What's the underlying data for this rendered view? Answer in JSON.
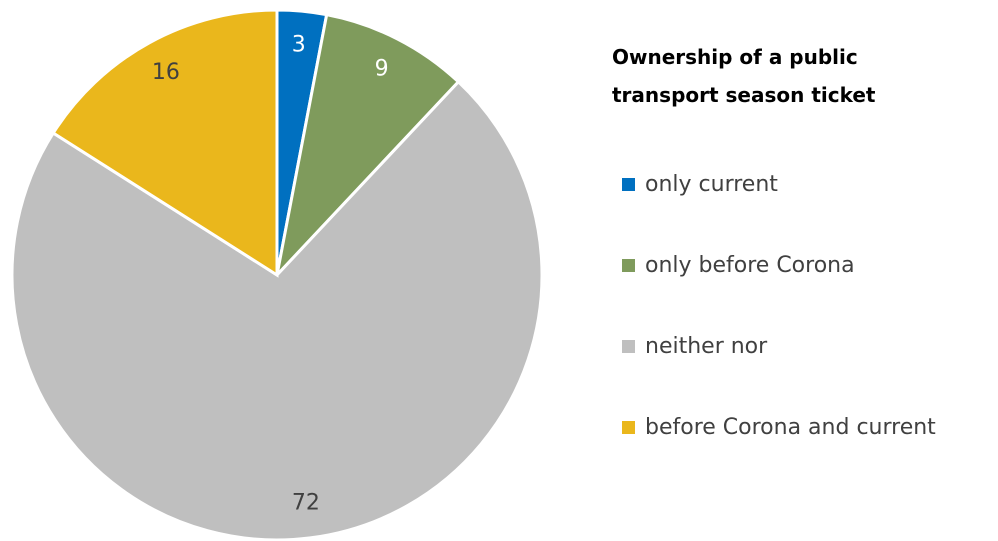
{
  "chart_data": {
    "type": "pie",
    "title": "Ownership of a public transport season ticket",
    "categories": [
      "only current",
      "only before Corona",
      "neither nor",
      "before Corona and current"
    ],
    "values": [
      3,
      9,
      72,
      16
    ],
    "colors": [
      "#0070c0",
      "#7f9b5c",
      "#bfbfbf",
      "#eab71c"
    ],
    "legend": "right"
  }
}
